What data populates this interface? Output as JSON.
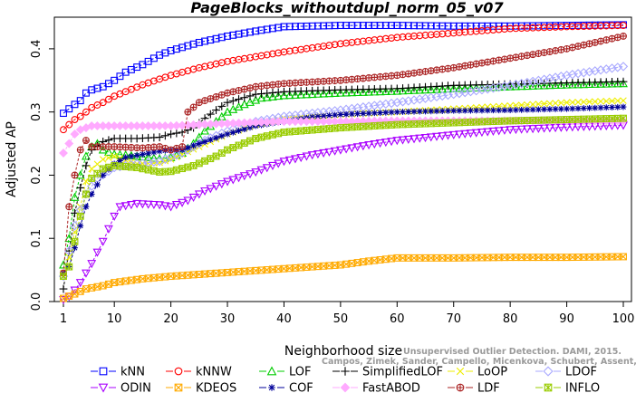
{
  "chart_data": {
    "type": "line",
    "title": "PageBlocks_withoutdupl_norm_05_v07",
    "xlabel": "Neighborhood size",
    "ylabel": "Adjusted AP",
    "xlim": [
      1,
      100
    ],
    "ylim": [
      0,
      0.45
    ],
    "xticks": [
      1,
      10,
      20,
      30,
      40,
      50,
      60,
      70,
      80,
      90,
      100
    ],
    "yticks": [
      0.0,
      0.1,
      0.2,
      0.3,
      0.4
    ],
    "xtick_labels": [
      "1",
      "10",
      "20",
      "30",
      "40",
      "50",
      "60",
      "70",
      "80",
      "90",
      "100"
    ],
    "ytick_labels": [
      "0.0",
      "0.1",
      "0.2",
      "0.3",
      "0.4"
    ],
    "grid": false,
    "legend_position": "bottom",
    "watermark": [
      "Unsupervised Outlier Detection. DAMI, 2015.",
      "Campos, Zimek, Sander, Campello, Micenkova, Schubert, Assent, Houle"
    ],
    "series": [
      {
        "name": "kNN",
        "color": "#0000ff",
        "marker": "square",
        "dashed": true,
        "points": [
          [
            1,
            0.298
          ],
          [
            2,
            0.305
          ],
          [
            3,
            0.312
          ],
          [
            4,
            0.318
          ],
          [
            5,
            0.33
          ],
          [
            6,
            0.335
          ],
          [
            8,
            0.34
          ],
          [
            10,
            0.35
          ],
          [
            12,
            0.363
          ],
          [
            15,
            0.375
          ],
          [
            18,
            0.39
          ],
          [
            20,
            0.397
          ],
          [
            25,
            0.41
          ],
          [
            30,
            0.42
          ],
          [
            35,
            0.428
          ],
          [
            40,
            0.435
          ],
          [
            50,
            0.437
          ],
          [
            60,
            0.437
          ],
          [
            70,
            0.436
          ],
          [
            80,
            0.436
          ],
          [
            90,
            0.437
          ],
          [
            100,
            0.438
          ]
        ]
      },
      {
        "name": "kNNW",
        "color": "#ff0000",
        "marker": "circle",
        "dashed": true,
        "points": [
          [
            1,
            0.272
          ],
          [
            2,
            0.28
          ],
          [
            3,
            0.288
          ],
          [
            4,
            0.293
          ],
          [
            5,
            0.3
          ],
          [
            6,
            0.307
          ],
          [
            8,
            0.315
          ],
          [
            10,
            0.325
          ],
          [
            15,
            0.343
          ],
          [
            20,
            0.358
          ],
          [
            25,
            0.37
          ],
          [
            30,
            0.38
          ],
          [
            40,
            0.395
          ],
          [
            50,
            0.408
          ],
          [
            60,
            0.418
          ],
          [
            70,
            0.425
          ],
          [
            80,
            0.432
          ],
          [
            90,
            0.435
          ],
          [
            100,
            0.437
          ]
        ]
      },
      {
        "name": "LOF",
        "color": "#00cc00",
        "marker": "triangle-up",
        "dashed": true,
        "points": [
          [
            1,
            0.058
          ],
          [
            2,
            0.1
          ],
          [
            3,
            0.165
          ],
          [
            4,
            0.2
          ],
          [
            5,
            0.23
          ],
          [
            6,
            0.245
          ],
          [
            7,
            0.25
          ],
          [
            8,
            0.24
          ],
          [
            10,
            0.233
          ],
          [
            12,
            0.232
          ],
          [
            14,
            0.23
          ],
          [
            16,
            0.228
          ],
          [
            18,
            0.226
          ],
          [
            20,
            0.228
          ],
          [
            22,
            0.235
          ],
          [
            24,
            0.25
          ],
          [
            26,
            0.27
          ],
          [
            28,
            0.285
          ],
          [
            30,
            0.3
          ],
          [
            33,
            0.312
          ],
          [
            36,
            0.322
          ],
          [
            40,
            0.326
          ],
          [
            50,
            0.33
          ],
          [
            60,
            0.333
          ],
          [
            70,
            0.337
          ],
          [
            80,
            0.34
          ],
          [
            90,
            0.343
          ],
          [
            100,
            0.345
          ]
        ]
      },
      {
        "name": "SimplifiedLOF",
        "color": "#000000",
        "marker": "plus",
        "dashed": true,
        "points": [
          [
            1,
            0.02
          ],
          [
            2,
            0.08
          ],
          [
            3,
            0.14
          ],
          [
            4,
            0.18
          ],
          [
            5,
            0.215
          ],
          [
            6,
            0.24
          ],
          [
            8,
            0.253
          ],
          [
            10,
            0.258
          ],
          [
            14,
            0.258
          ],
          [
            18,
            0.26
          ],
          [
            20,
            0.265
          ],
          [
            22,
            0.268
          ],
          [
            24,
            0.275
          ],
          [
            26,
            0.29
          ],
          [
            28,
            0.303
          ],
          [
            30,
            0.315
          ],
          [
            35,
            0.328
          ],
          [
            40,
            0.332
          ],
          [
            50,
            0.335
          ],
          [
            60,
            0.337
          ],
          [
            70,
            0.342
          ],
          [
            80,
            0.344
          ],
          [
            90,
            0.346
          ],
          [
            100,
            0.348
          ]
        ]
      },
      {
        "name": "LoOP",
        "color": "#eeee00",
        "marker": "cross",
        "dashed": true,
        "points": [
          [
            1,
            0.045
          ],
          [
            2,
            0.07
          ],
          [
            3,
            0.11
          ],
          [
            4,
            0.15
          ],
          [
            5,
            0.19
          ],
          [
            6,
            0.21
          ],
          [
            8,
            0.225
          ],
          [
            10,
            0.23
          ],
          [
            14,
            0.218
          ],
          [
            18,
            0.22
          ],
          [
            20,
            0.225
          ],
          [
            25,
            0.245
          ],
          [
            30,
            0.265
          ],
          [
            35,
            0.28
          ],
          [
            40,
            0.29
          ],
          [
            50,
            0.296
          ],
          [
            60,
            0.3
          ],
          [
            70,
            0.305
          ],
          [
            80,
            0.31
          ],
          [
            90,
            0.315
          ],
          [
            100,
            0.318
          ]
        ]
      },
      {
        "name": "LDOF",
        "color": "#aaaaff",
        "marker": "diamond",
        "dashed": true,
        "points": [
          [
            1,
            0.04
          ],
          [
            3,
            0.12
          ],
          [
            5,
            0.17
          ],
          [
            7,
            0.195
          ],
          [
            10,
            0.212
          ],
          [
            14,
            0.218
          ],
          [
            18,
            0.222
          ],
          [
            22,
            0.235
          ],
          [
            26,
            0.255
          ],
          [
            30,
            0.27
          ],
          [
            35,
            0.285
          ],
          [
            40,
            0.293
          ],
          [
            50,
            0.303
          ],
          [
            60,
            0.315
          ],
          [
            70,
            0.328
          ],
          [
            80,
            0.342
          ],
          [
            90,
            0.358
          ],
          [
            100,
            0.372
          ]
        ]
      },
      {
        "name": "ODIN",
        "color": "#aa00ff",
        "marker": "triangle-down",
        "dashed": true,
        "points": [
          [
            1,
            0.003
          ],
          [
            2,
            0.008
          ],
          [
            3,
            0.018
          ],
          [
            4,
            0.03
          ],
          [
            5,
            0.045
          ],
          [
            6,
            0.06
          ],
          [
            7,
            0.078
          ],
          [
            8,
            0.095
          ],
          [
            9,
            0.115
          ],
          [
            10,
            0.135
          ],
          [
            11,
            0.15
          ],
          [
            14,
            0.155
          ],
          [
            18,
            0.153
          ],
          [
            20,
            0.15
          ],
          [
            23,
            0.16
          ],
          [
            26,
            0.175
          ],
          [
            30,
            0.19
          ],
          [
            35,
            0.205
          ],
          [
            40,
            0.222
          ],
          [
            45,
            0.232
          ],
          [
            50,
            0.24
          ],
          [
            55,
            0.248
          ],
          [
            60,
            0.255
          ],
          [
            70,
            0.264
          ],
          [
            80,
            0.272
          ],
          [
            90,
            0.276
          ],
          [
            100,
            0.279
          ]
        ]
      },
      {
        "name": "KDEOS",
        "color": "#ffaa00",
        "marker": "square-x",
        "dashed": true,
        "points": [
          [
            1,
            0.005
          ],
          [
            3,
            0.012
          ],
          [
            5,
            0.02
          ],
          [
            8,
            0.025
          ],
          [
            10,
            0.03
          ],
          [
            15,
            0.036
          ],
          [
            20,
            0.04
          ],
          [
            25,
            0.043
          ],
          [
            30,
            0.046
          ],
          [
            40,
            0.052
          ],
          [
            50,
            0.058
          ],
          [
            55,
            0.064
          ],
          [
            60,
            0.069
          ],
          [
            70,
            0.069
          ],
          [
            80,
            0.07
          ],
          [
            90,
            0.07
          ],
          [
            100,
            0.071
          ]
        ]
      },
      {
        "name": "COF",
        "color": "#000099",
        "marker": "asterisk",
        "dashed": true,
        "points": [
          [
            1,
            0.045
          ],
          [
            2,
            0.055
          ],
          [
            3,
            0.085
          ],
          [
            4,
            0.12
          ],
          [
            5,
            0.15
          ],
          [
            6,
            0.17
          ],
          [
            8,
            0.2
          ],
          [
            10,
            0.218
          ],
          [
            12,
            0.228
          ],
          [
            15,
            0.233
          ],
          [
            18,
            0.238
          ],
          [
            20,
            0.24
          ],
          [
            22,
            0.24
          ],
          [
            25,
            0.25
          ],
          [
            30,
            0.265
          ],
          [
            35,
            0.278
          ],
          [
            40,
            0.285
          ],
          [
            45,
            0.292
          ],
          [
            50,
            0.296
          ],
          [
            60,
            0.3
          ],
          [
            70,
            0.302
          ],
          [
            80,
            0.303
          ],
          [
            90,
            0.305
          ],
          [
            100,
            0.308
          ]
        ]
      },
      {
        "name": "FastABOD",
        "color": "#ffaaff",
        "marker": "diamond-filled",
        "dashed": true,
        "points": [
          [
            1,
            0.235
          ],
          [
            2,
            0.25
          ],
          [
            3,
            0.265
          ],
          [
            4,
            0.272
          ],
          [
            6,
            0.278
          ],
          [
            10,
            0.278
          ],
          [
            20,
            0.278
          ],
          [
            25,
            0.28
          ],
          [
            30,
            0.282
          ],
          [
            40,
            0.285
          ],
          [
            50,
            0.285
          ],
          [
            60,
            0.286
          ],
          [
            70,
            0.286
          ],
          [
            80,
            0.286
          ],
          [
            90,
            0.286
          ],
          [
            100,
            0.286
          ]
        ]
      },
      {
        "name": "LDF",
        "color": "#aa2222",
        "marker": "circle-plus",
        "dashed": true,
        "points": [
          [
            1,
            0.045
          ],
          [
            2,
            0.15
          ],
          [
            3,
            0.2
          ],
          [
            4,
            0.24
          ],
          [
            5,
            0.255
          ],
          [
            6,
            0.245
          ],
          [
            8,
            0.245
          ],
          [
            10,
            0.245
          ],
          [
            15,
            0.243
          ],
          [
            18,
            0.245
          ],
          [
            20,
            0.24
          ],
          [
            22,
            0.245
          ],
          [
            23,
            0.3
          ],
          [
            25,
            0.315
          ],
          [
            30,
            0.33
          ],
          [
            35,
            0.34
          ],
          [
            40,
            0.345
          ],
          [
            50,
            0.35
          ],
          [
            60,
            0.358
          ],
          [
            70,
            0.37
          ],
          [
            80,
            0.385
          ],
          [
            90,
            0.4
          ],
          [
            100,
            0.42
          ]
        ]
      },
      {
        "name": "INFLO",
        "color": "#99cc00",
        "marker": "square-star",
        "dashed": true,
        "points": [
          [
            1,
            0.04
          ],
          [
            2,
            0.055
          ],
          [
            3,
            0.095
          ],
          [
            4,
            0.135
          ],
          [
            5,
            0.17
          ],
          [
            6,
            0.195
          ],
          [
            8,
            0.21
          ],
          [
            10,
            0.215
          ],
          [
            14,
            0.212
          ],
          [
            18,
            0.205
          ],
          [
            20,
            0.206
          ],
          [
            24,
            0.215
          ],
          [
            28,
            0.23
          ],
          [
            30,
            0.24
          ],
          [
            35,
            0.258
          ],
          [
            40,
            0.268
          ],
          [
            50,
            0.275
          ],
          [
            60,
            0.28
          ],
          [
            70,
            0.283
          ],
          [
            80,
            0.286
          ],
          [
            90,
            0.288
          ],
          [
            100,
            0.29
          ]
        ]
      }
    ],
    "legend_rows": [
      [
        "kNN",
        "kNNW",
        "LOF",
        "SimplifiedLOF",
        "LoOP",
        "LDOF"
      ],
      [
        "ODIN",
        "KDEOS",
        "COF",
        "FastABOD",
        "LDF",
        "INFLO"
      ]
    ]
  }
}
